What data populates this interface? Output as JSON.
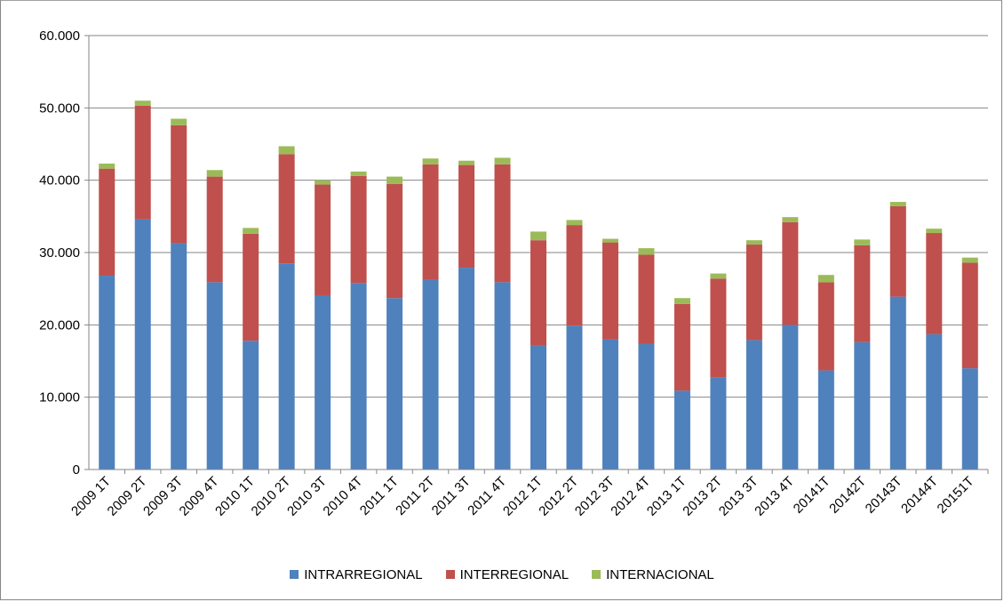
{
  "chart_data": {
    "type": "bar",
    "stacked": true,
    "title": "",
    "xlabel": "",
    "ylabel": "",
    "ylim": [
      0,
      60000
    ],
    "yticks": [
      0,
      10000,
      20000,
      30000,
      40000,
      50000,
      60000
    ],
    "ytick_labels": [
      "0",
      "10.000",
      "20.000",
      "30.000",
      "40.000",
      "50.000",
      "60.000"
    ],
    "grid": true,
    "legend_position": "bottom",
    "categories": [
      "2009 1T",
      "2009 2T",
      "2009 3T",
      "2009 4T",
      "2010 1T",
      "2010 2T",
      "2010 3T",
      "2010 4T",
      "2011 1T",
      "2011 2T",
      "2011 3T",
      "2011 4T",
      "2012 1T",
      "2012 2T",
      "2012 3T",
      "2012 4T",
      "2013 1T",
      "2013 2T",
      "2013 3T",
      "2013 4T",
      "20141T",
      "20142T",
      "20143T",
      "20144T",
      "20151T"
    ],
    "series": [
      {
        "name": "INTRARREGIONAL",
        "color": "#4f81bd",
        "values": [
          26800,
          34600,
          31300,
          25900,
          17800,
          28500,
          24100,
          25800,
          23700,
          26200,
          27900,
          25900,
          17100,
          19900,
          18000,
          17400,
          10900,
          12700,
          17900,
          20000,
          13700,
          17600,
          23900,
          18700,
          14000
        ]
      },
      {
        "name": "INTERREGIONAL",
        "color": "#c0504d",
        "values": [
          14800,
          15700,
          16300,
          14600,
          14800,
          15100,
          15300,
          14800,
          15800,
          16000,
          14200,
          16300,
          14600,
          13900,
          13400,
          12300,
          12000,
          13700,
          13200,
          14200,
          12200,
          13400,
          12500,
          14000,
          14600
        ]
      },
      {
        "name": "INTERNACIONAL",
        "color": "#9bbb59",
        "values": [
          700,
          700,
          900,
          900,
          800,
          1100,
          600,
          600,
          1000,
          800,
          600,
          900,
          1200,
          700,
          500,
          900,
          800,
          700,
          600,
          700,
          1000,
          800,
          600,
          600,
          700
        ]
      }
    ]
  }
}
